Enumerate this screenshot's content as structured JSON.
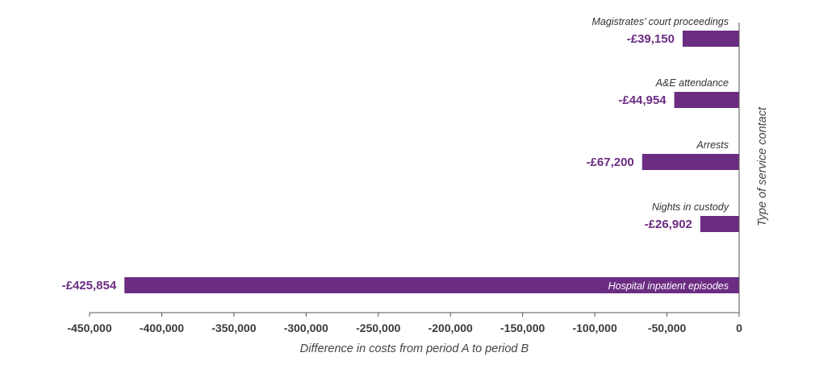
{
  "chart_data": {
    "type": "bar",
    "orientation": "horizontal",
    "categories": [
      "Magistrates’ court proceedings",
      "A&E attendance",
      "Arrests",
      "Nights in custody",
      "Hospital inpatient episodes"
    ],
    "values": [
      -39150,
      -44954,
      -67200,
      -26902,
      -425854
    ],
    "value_labels": [
      "-£39,150",
      "-£44,954",
      "-£67,200",
      "-£26,902",
      "-£425,854"
    ],
    "xlabel": "Difference in costs from period A to period B",
    "ylabel": "Type of service contact",
    "xlim": [
      -450000,
      0
    ],
    "xticks": [
      -450000,
      -400000,
      -350000,
      -300000,
      -250000,
      -200000,
      -150000,
      -100000,
      -50000,
      0
    ],
    "xtick_labels": [
      "-450,000",
      "-400,000",
      "-350,000",
      "-300,000",
      "-250,000",
      "-200,000",
      "-150,000",
      "-100,000",
      "-50,000",
      "0"
    ],
    "grid": false,
    "legend": "none",
    "bar_color": "#6b2c82",
    "label_color": "#6b2c82"
  }
}
